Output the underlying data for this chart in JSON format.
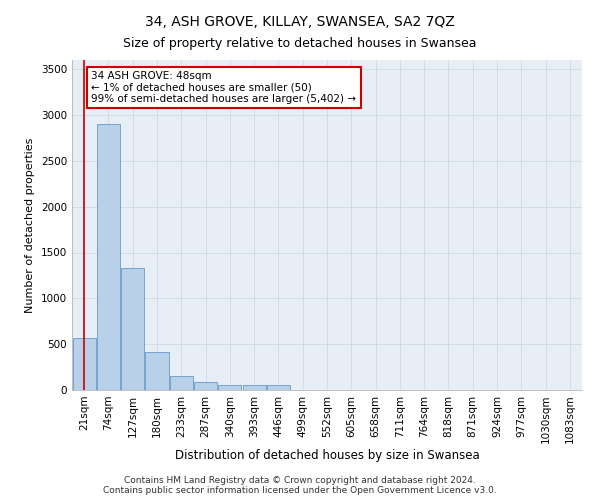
{
  "title": "34, ASH GROVE, KILLAY, SWANSEA, SA2 7QZ",
  "subtitle": "Size of property relative to detached houses in Swansea",
  "xlabel": "Distribution of detached houses by size in Swansea",
  "ylabel": "Number of detached properties",
  "categories": [
    "21sqm",
    "74sqm",
    "127sqm",
    "180sqm",
    "233sqm",
    "287sqm",
    "340sqm",
    "393sqm",
    "446sqm",
    "499sqm",
    "552sqm",
    "605sqm",
    "658sqm",
    "711sqm",
    "764sqm",
    "818sqm",
    "871sqm",
    "924sqm",
    "977sqm",
    "1030sqm",
    "1083sqm"
  ],
  "bar_heights": [
    570,
    2900,
    1330,
    415,
    155,
    85,
    60,
    55,
    50,
    0,
    0,
    0,
    0,
    0,
    0,
    0,
    0,
    0,
    0,
    0,
    0
  ],
  "bar_color": "#b8d0e8",
  "bar_edge_color": "#6699cc",
  "grid_color": "#d0dce8",
  "background_color": "#e8eef5",
  "annotation_text": "34 ASH GROVE: 48sqm\n← 1% of detached houses are smaller (50)\n99% of semi-detached houses are larger (5,402) →",
  "annotation_box_color": "#ffffff",
  "annotation_box_edge": "#cc0000",
  "marker_line_color": "#cc0000",
  "ylim": [
    0,
    3600
  ],
  "yticks": [
    0,
    500,
    1000,
    1500,
    2000,
    2500,
    3000,
    3500
  ],
  "footer_line1": "Contains HM Land Registry data © Crown copyright and database right 2024.",
  "footer_line2": "Contains public sector information licensed under the Open Government Licence v3.0.",
  "title_fontsize": 10,
  "subtitle_fontsize": 9,
  "xlabel_fontsize": 8.5,
  "ylabel_fontsize": 8,
  "tick_fontsize": 7.5,
  "footer_fontsize": 6.5,
  "annotation_fontsize": 7.5
}
